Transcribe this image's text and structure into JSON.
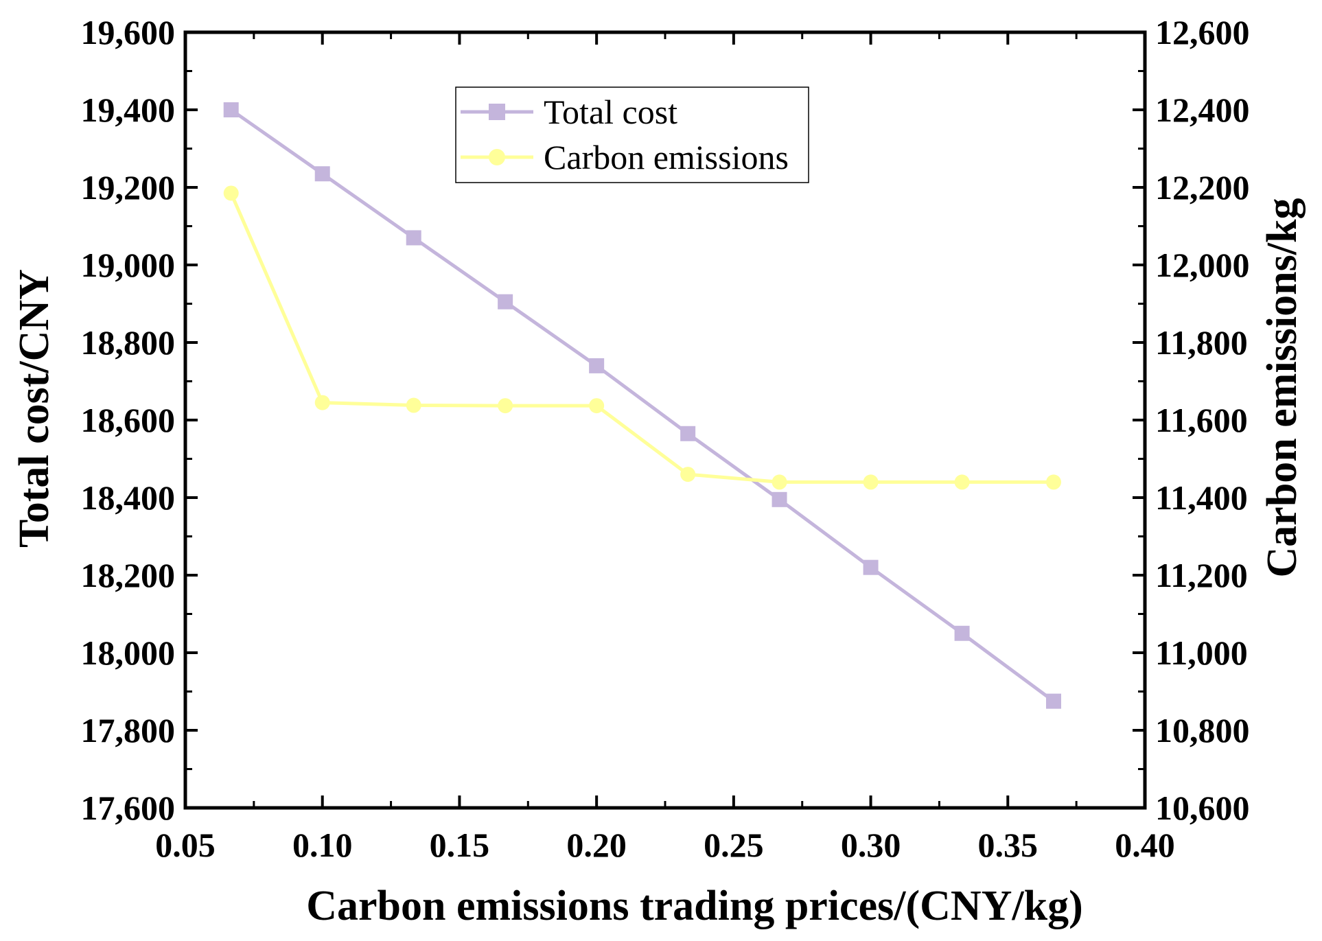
{
  "chart_data": {
    "type": "line",
    "title": "",
    "xlabel": "Carbon emissions trading prices/(CNY/kg)",
    "ylabel_left": "Total cost/CNY",
    "ylabel_right": "Carbon emissions/kg",
    "xlim": [
      0.05,
      0.4
    ],
    "ylim_left": [
      17600,
      19600
    ],
    "ylim_right": [
      10600,
      12600
    ],
    "x_ticks": [
      "0.05",
      "0.10",
      "0.15",
      "0.20",
      "0.25",
      "0.30",
      "0.35",
      "0.40"
    ],
    "y_left_ticks": [
      "17,600",
      "17,800",
      "18,000",
      "18,200",
      "18,400",
      "18,600",
      "18,800",
      "19,000",
      "19,200",
      "19,400",
      "19,600"
    ],
    "y_right_ticks": [
      "10,600",
      "10,800",
      "11,000",
      "11,200",
      "11,400",
      "11,600",
      "11,800",
      "12,000",
      "12,200",
      "12,400",
      "12,600"
    ],
    "legend_position": "top-center",
    "grid": false,
    "series": [
      {
        "name": "Total cost",
        "axis": "left",
        "marker": "square",
        "color": "#C4B5DC",
        "x": [
          0.0667,
          0.1,
          0.1333,
          0.1667,
          0.2,
          0.2333,
          0.2667,
          0.3,
          0.3333,
          0.3667
        ],
        "y": [
          19400,
          19235,
          19070,
          18905,
          18740,
          18565,
          18395,
          18220,
          18050,
          17875
        ]
      },
      {
        "name": "Carbon emissions",
        "axis": "right",
        "marker": "circle",
        "color": "#FFFF99",
        "x": [
          0.0667,
          0.1,
          0.1333,
          0.1667,
          0.2,
          0.2333,
          0.2667,
          0.3,
          0.3333,
          0.3667
        ],
        "y": [
          12185,
          11645,
          11638,
          11637,
          11637,
          11460,
          11440,
          11440,
          11440,
          11440
        ]
      }
    ]
  }
}
